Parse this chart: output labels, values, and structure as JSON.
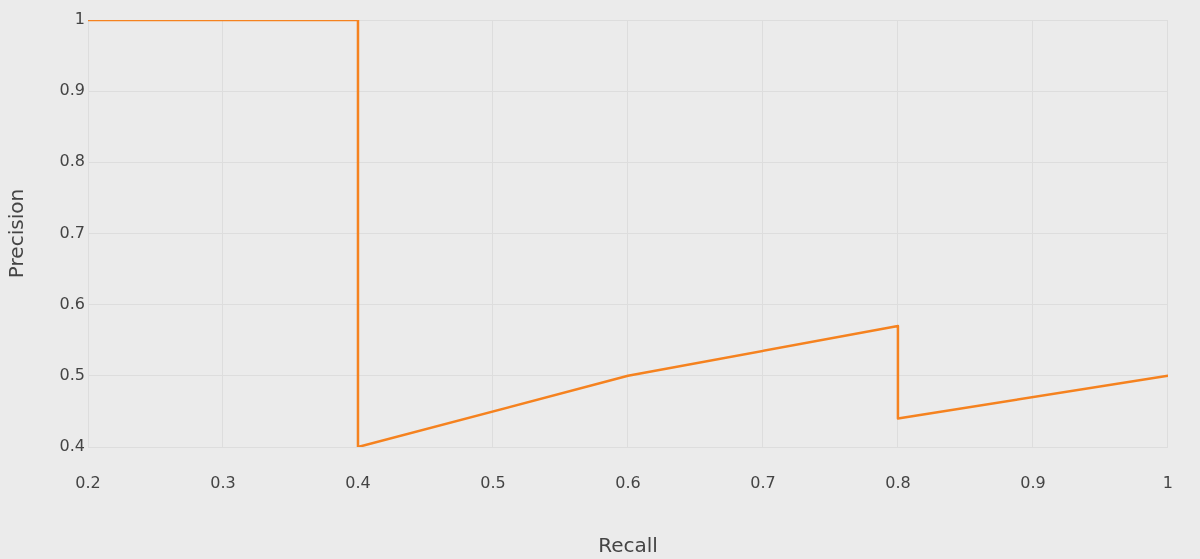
{
  "chart_data": {
    "type": "line",
    "xlabel": "Recall",
    "ylabel": "Precision",
    "x": [
      0.2,
      0.4,
      0.4,
      0.6,
      0.8,
      0.8,
      1
    ],
    "series": [
      {
        "color": "#f5821f",
        "values": [
          1,
          1,
          0.4,
          0.5,
          0.57,
          0.44,
          0.5
        ]
      }
    ],
    "xlim": [
      0.2,
      1
    ],
    "ylim": [
      0.4,
      1
    ],
    "xticks": [
      0.2,
      0.3,
      0.4,
      0.5,
      0.6,
      0.7,
      0.8,
      0.9,
      1
    ],
    "yticks": [
      0.4,
      0.5,
      0.6,
      0.7,
      0.8,
      0.9,
      1
    ],
    "grid": true,
    "marker": "none"
  }
}
